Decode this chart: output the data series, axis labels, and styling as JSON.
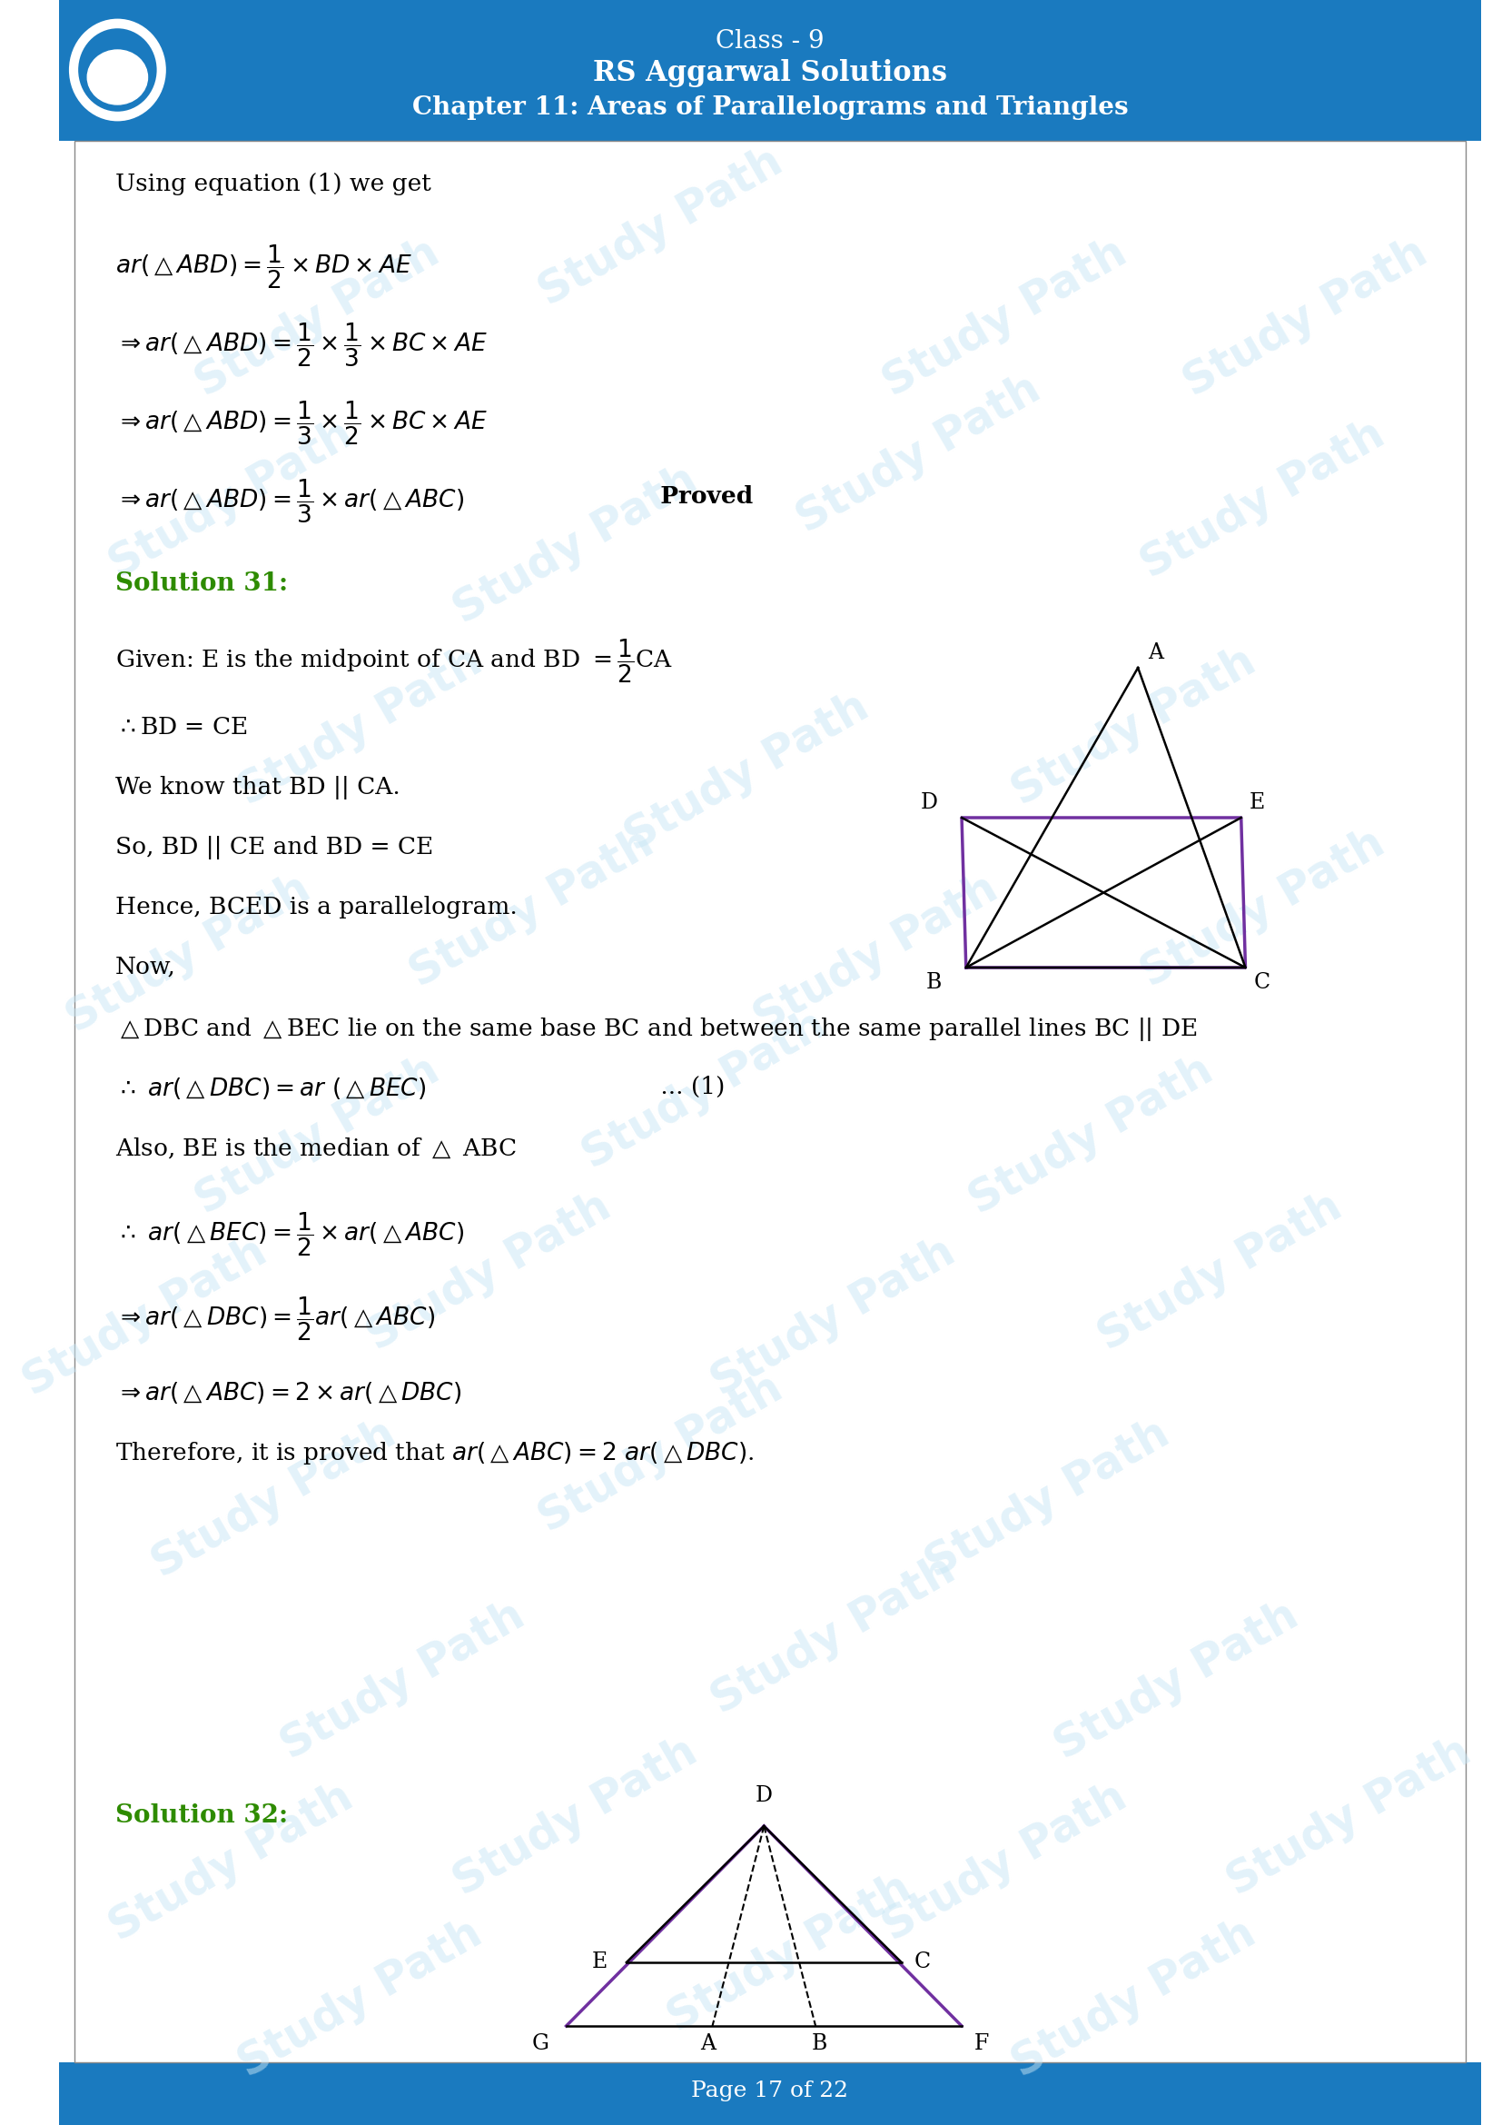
{
  "header_bg": "#1a7abf",
  "header_text_color": "#ffffff",
  "footer_bg": "#1a7abf",
  "footer_text_color": "#ffffff",
  "body_bg": "#ffffff",
  "body_text_color": "#000000",
  "solution_color": "#2e8b00",
  "title_line1": "Class - 9",
  "title_line2": "RS Aggarwal Solutions",
  "title_line3": "Chapter 11: Areas of Parallelograms and Triangles",
  "footer_text": "Page 17 of 22",
  "watermark_color": "#c8e6f5",
  "border_color": "#000000"
}
